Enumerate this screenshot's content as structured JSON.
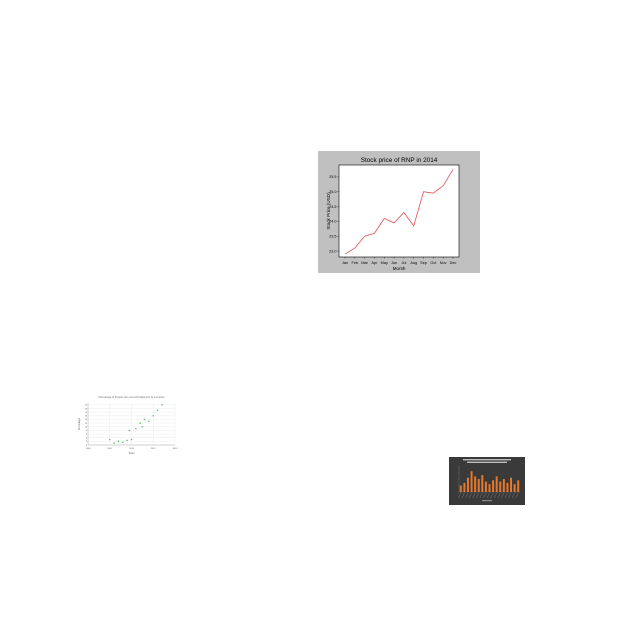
{
  "chart_data": [
    {
      "type": "line",
      "title": "Stock price of RNP in 2014",
      "xlabel": "Month",
      "ylabel": "Stock Price (USD)",
      "categories": [
        "Jan",
        "Feb",
        "Mar",
        "Apr",
        "May",
        "Jun",
        "Jul",
        "Aug",
        "Sep",
        "Oct",
        "Nov",
        "Dec"
      ],
      "values": [
        22.9,
        23.1,
        23.5,
        23.6,
        24.1,
        23.95,
        24.3,
        23.85,
        25.0,
        24.95,
        25.2,
        25.75
      ],
      "yticks": [
        "23.0",
        "23.5",
        "24.0",
        "24.5",
        "25.0",
        "25.5"
      ],
      "ylim": [
        22.8,
        25.9
      ],
      "line_color": "#e05050",
      "background": "#c0c0c0",
      "grid": false
    },
    {
      "type": "scatter",
      "title": "Percentage of People who are self-employed in Colorado",
      "xlabel": "Years",
      "ylabel": "Percentage",
      "x": [
        2005,
        2006,
        2007,
        2008,
        2009,
        2009.5,
        2010,
        2011,
        2012,
        2012.5,
        2013,
        2014,
        2015,
        2016,
        2017
      ],
      "y": [
        3,
        1,
        2,
        1.5,
        2.5,
        8,
        3,
        9,
        12,
        10,
        14,
        13,
        16,
        19,
        22
      ],
      "xticks": [
        "2000",
        "2005",
        "2010",
        "2015",
        "2020"
      ],
      "yticks": [
        "0",
        "2",
        "4",
        "6",
        "8",
        "10",
        "12",
        "14",
        "16",
        "18",
        "20",
        "22"
      ],
      "xlim": [
        2000,
        2020
      ],
      "ylim": [
        0,
        23
      ],
      "point_color": "#6abf69",
      "grid": true
    },
    {
      "type": "bar",
      "title": "",
      "xlabel": "",
      "ylabel": "",
      "categories": [
        "1",
        "2",
        "3",
        "4",
        "5",
        "6",
        "7",
        "8",
        "9",
        "10",
        "11",
        "12",
        "13",
        "14",
        "15",
        "16",
        "17"
      ],
      "values": [
        5,
        7,
        11,
        16,
        12,
        10,
        13,
        8,
        6,
        9,
        12,
        8,
        10,
        7,
        11,
        6,
        9
      ],
      "ylim": [
        0,
        20
      ],
      "bar_color": "#e8792b",
      "background": "#3a3a3a"
    }
  ]
}
